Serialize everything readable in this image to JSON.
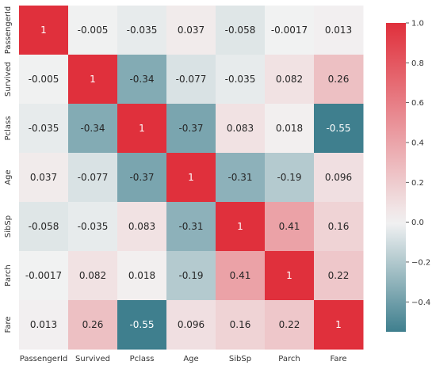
{
  "chart_data": {
    "type": "heatmap",
    "title": "",
    "xlabels": [
      "PassengerId",
      "Survived",
      "Pclass",
      "Age",
      "SibSp",
      "Parch",
      "Fare"
    ],
    "ylabels": [
      "PassengerId",
      "Survived",
      "Pclass",
      "Age",
      "SibSp",
      "Parch",
      "Fare"
    ],
    "annotations": [
      [
        "1",
        "-0.005",
        "-0.035",
        "0.037",
        "-0.058",
        "-0.0017",
        "0.013"
      ],
      [
        "-0.005",
        "1",
        "-0.34",
        "-0.077",
        "-0.035",
        "0.082",
        "0.26"
      ],
      [
        "-0.035",
        "-0.34",
        "1",
        "-0.37",
        "0.083",
        "0.018",
        "-0.55"
      ],
      [
        "0.037",
        "-0.077",
        "-0.37",
        "1",
        "-0.31",
        "-0.19",
        "0.096"
      ],
      [
        "-0.058",
        "-0.035",
        "0.083",
        "-0.31",
        "1",
        "0.41",
        "0.16"
      ],
      [
        "-0.0017",
        "0.082",
        "0.018",
        "-0.19",
        "0.41",
        "1",
        "0.22"
      ],
      [
        "0.013",
        "0.26",
        "-0.55",
        "0.096",
        "0.16",
        "0.22",
        "1"
      ]
    ],
    "colorbar": {
      "vmin": -0.55,
      "vmax": 1.0,
      "center": 0.0,
      "ticks": [
        -0.4,
        -0.2,
        0.0,
        0.2,
        0.4,
        0.6,
        0.8,
        1.0
      ],
      "tick_labels": [
        "−0.4",
        "−0.2",
        "0.0",
        "0.2",
        "0.4",
        "0.6",
        "0.8",
        "1.0"
      ],
      "low_color": "#3f7f8e",
      "mid_color": "#f2f2f2",
      "high_color": "#e0303c"
    }
  }
}
